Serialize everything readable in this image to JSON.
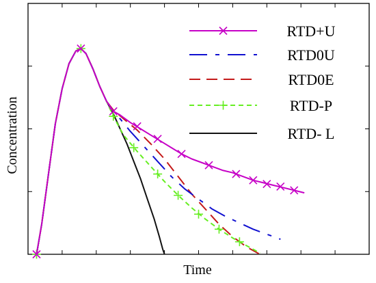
{
  "chart_data": {
    "type": "line",
    "xlabel": "Time",
    "ylabel": "Concentration",
    "xlim": [
      0,
      100
    ],
    "ylim": [
      0,
      100
    ],
    "grid": false,
    "legend_position": "top-right",
    "series": [
      {
        "name": "RTD+U",
        "color": "#c600c6",
        "dash": "solid",
        "marker": "x",
        "points": [
          [
            2.5,
            0
          ],
          [
            4,
            12
          ],
          [
            6,
            32
          ],
          [
            8,
            52
          ],
          [
            10,
            66
          ],
          [
            12,
            76
          ],
          [
            14,
            81
          ],
          [
            15.5,
            82
          ],
          [
            17,
            80
          ],
          [
            19,
            74
          ],
          [
            21,
            67
          ],
          [
            23,
            61
          ],
          [
            25,
            57
          ],
          [
            27,
            55.5
          ],
          [
            30,
            52.5
          ],
          [
            33,
            50
          ],
          [
            36,
            47.5
          ],
          [
            39,
            45
          ],
          [
            42,
            42.5
          ],
          [
            45,
            40
          ],
          [
            48,
            38
          ],
          [
            51,
            36.5
          ],
          [
            54,
            35
          ],
          [
            57,
            33.5
          ],
          [
            60,
            32.5
          ],
          [
            63,
            31
          ],
          [
            66,
            29.5
          ],
          [
            69,
            28.5
          ],
          [
            72,
            27.5
          ],
          [
            75,
            26.5
          ],
          [
            78,
            25.5
          ],
          [
            81,
            24.5
          ]
        ],
        "markers": [
          [
            2.5,
            0
          ],
          [
            15.5,
            82
          ],
          [
            25,
            57
          ],
          [
            32,
            51
          ],
          [
            38,
            46
          ],
          [
            45,
            40
          ],
          [
            53,
            35.5
          ],
          [
            61,
            32
          ],
          [
            66,
            29.5
          ],
          [
            70,
            28
          ],
          [
            74,
            27
          ],
          [
            78,
            25.5
          ]
        ]
      },
      {
        "name": "RTD0U",
        "color": "#1010d0",
        "dash": "long-short",
        "marker": "none",
        "points": [
          [
            2.5,
            0
          ],
          [
            4,
            12
          ],
          [
            6,
            32
          ],
          [
            8,
            52
          ],
          [
            10,
            66
          ],
          [
            12,
            76
          ],
          [
            14,
            81
          ],
          [
            15.5,
            82
          ],
          [
            17,
            80
          ],
          [
            19,
            74
          ],
          [
            21,
            67
          ],
          [
            23,
            61
          ],
          [
            25,
            57
          ],
          [
            27,
            54
          ],
          [
            30,
            49
          ],
          [
            34,
            43
          ],
          [
            38,
            37
          ],
          [
            42,
            31
          ],
          [
            46,
            26
          ],
          [
            50,
            22
          ],
          [
            54,
            18
          ],
          [
            58,
            15
          ],
          [
            62,
            12.5
          ],
          [
            66,
            10
          ],
          [
            70,
            8
          ],
          [
            74,
            6
          ]
        ]
      },
      {
        "name": "RTD0E",
        "color": "#c41a1a",
        "dash": "long",
        "marker": "none",
        "points": [
          [
            2.5,
            0
          ],
          [
            4,
            12
          ],
          [
            6,
            32
          ],
          [
            8,
            52
          ],
          [
            10,
            66
          ],
          [
            12,
            76
          ],
          [
            14,
            81
          ],
          [
            15.5,
            82
          ],
          [
            17,
            80
          ],
          [
            19,
            74
          ],
          [
            21,
            67
          ],
          [
            23,
            61
          ],
          [
            25,
            57.5
          ],
          [
            28,
            54
          ],
          [
            32,
            49.5
          ],
          [
            36,
            44
          ],
          [
            40,
            38
          ],
          [
            44,
            31
          ],
          [
            48,
            24
          ],
          [
            52,
            18
          ],
          [
            56,
            12
          ],
          [
            60,
            7
          ],
          [
            64,
            3
          ],
          [
            68,
            0
          ]
        ]
      },
      {
        "name": "RTD-P",
        "color": "#66ee22",
        "dash": "short",
        "marker": "+",
        "points": [
          [
            2.5,
            0
          ],
          [
            4,
            12
          ],
          [
            6,
            32
          ],
          [
            8,
            52
          ],
          [
            10,
            66
          ],
          [
            12,
            76
          ],
          [
            14,
            81
          ],
          [
            15.5,
            82
          ],
          [
            17,
            80
          ],
          [
            19,
            74
          ],
          [
            21,
            67
          ],
          [
            23,
            61
          ],
          [
            25,
            55
          ],
          [
            28,
            47.5
          ],
          [
            32,
            41
          ],
          [
            36,
            35
          ],
          [
            40,
            29
          ],
          [
            44,
            23.5
          ],
          [
            48,
            18.5
          ],
          [
            52,
            14
          ],
          [
            56,
            10
          ],
          [
            60,
            6.5
          ],
          [
            64,
            3.5
          ],
          [
            68,
            0.5
          ]
        ],
        "markers": [
          [
            2.5,
            0
          ],
          [
            15.5,
            82
          ],
          [
            25,
            55
          ],
          [
            31,
            42.5
          ],
          [
            38,
            32
          ],
          [
            44,
            23.5
          ],
          [
            50,
            16
          ],
          [
            56,
            10
          ],
          [
            62,
            5
          ]
        ]
      },
      {
        "name": "RTD- L",
        "color": "#111111",
        "dash": "solid",
        "marker": "none",
        "points": [
          [
            2.5,
            0
          ],
          [
            4,
            12
          ],
          [
            6,
            32
          ],
          [
            8,
            52
          ],
          [
            10,
            66
          ],
          [
            12,
            76
          ],
          [
            14,
            81
          ],
          [
            15.5,
            82
          ],
          [
            17,
            80
          ],
          [
            19,
            74
          ],
          [
            21,
            67
          ],
          [
            23,
            61
          ],
          [
            25,
            56
          ],
          [
            27,
            50
          ],
          [
            29,
            44
          ],
          [
            31,
            37
          ],
          [
            33,
            30
          ],
          [
            35,
            22
          ],
          [
            37,
            14
          ],
          [
            38.5,
            7
          ],
          [
            39.5,
            2
          ],
          [
            40,
            0
          ]
        ]
      }
    ]
  }
}
